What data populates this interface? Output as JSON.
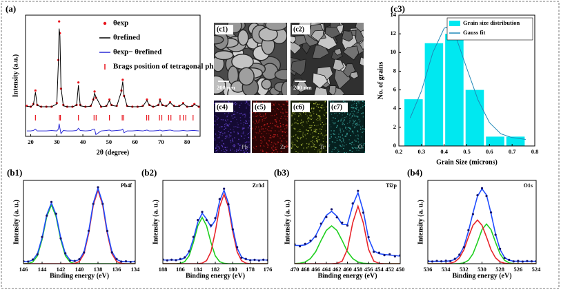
{
  "chart_data": [
    {
      "type": "line",
      "panel": "(a)",
      "x_label": "2θ (degree)",
      "y_label": "Intensity (a.u.)",
      "xlim": [
        18,
        85
      ],
      "xticks": [
        20,
        30,
        40,
        50,
        60,
        70,
        80
      ],
      "ylim": [
        -30,
        105
      ],
      "legend": "upper right",
      "x": [
        18.5,
        20,
        21,
        21.8,
        22.5,
        24,
        26,
        28,
        30,
        30.6,
        30.9,
        31.2,
        31.6,
        32.5,
        34,
        36,
        37.6,
        38.3,
        39,
        41,
        43,
        44,
        44.5,
        45,
        47,
        49,
        50.2,
        51,
        53,
        54.8,
        55.3,
        55.8,
        57,
        59,
        61,
        63,
        64.6,
        65.5,
        67,
        69,
        69.6,
        70.5,
        72,
        73.5,
        75,
        77,
        78.5,
        80,
        82,
        82.8,
        84.5
      ],
      "series": [
        {
          "name": "θexp",
          "color": "#e8141c",
          "style": "dots",
          "values": [
            4,
            3,
            6,
            21,
            5,
            3,
            3,
            3,
            7,
            55,
            98,
            85,
            23,
            5,
            3,
            3,
            5,
            30,
            5,
            3,
            4,
            11,
            20,
            13,
            3,
            4,
            11,
            5,
            4,
            21,
            33,
            15,
            4,
            3,
            3,
            4,
            11,
            5,
            3,
            5,
            11,
            5,
            4,
            8,
            4,
            4,
            7,
            3,
            4,
            6,
            3
          ]
        },
        {
          "name": "θrefined",
          "color": "#000000",
          "style": "line",
          "values": [
            3.5,
            3,
            5,
            19,
            4.5,
            3,
            3,
            3,
            6,
            52,
            90,
            82,
            25,
            4,
            3,
            3,
            4.5,
            27,
            4,
            3,
            3.5,
            10,
            18,
            14,
            3,
            3.5,
            10,
            4.5,
            3.5,
            20,
            31,
            16,
            3.5,
            3,
            3,
            3.5,
            10,
            4.5,
            3,
            4.5,
            10,
            4.5,
            3.5,
            7.5,
            3.5,
            3.5,
            6.5,
            3,
            3.5,
            5.5,
            3
          ]
        },
        {
          "name": "θexp− θrefined",
          "color": "#2b2bd6",
          "style": "line",
          "values": [
            -24,
            -24,
            -23.5,
            -22,
            -24,
            -24,
            -24,
            -23.5,
            -24,
            -22,
            -16,
            -21,
            -27,
            -23.5,
            -24,
            -24,
            -23.5,
            -21,
            -23.5,
            -24,
            -23.5,
            -22,
            -22,
            -28,
            -24,
            -23.5,
            -23,
            -24,
            -23.5,
            -23,
            -22,
            -26,
            -24,
            -24,
            -23.5,
            -24,
            -23,
            -24,
            -24,
            -23.5,
            -23,
            -24,
            -23.5,
            -23,
            -24,
            -24,
            -23.5,
            -24,
            -23.5,
            -23.5,
            -24
          ]
        },
        {
          "name": "Brags position of tetragonal phase",
          "color": "#e8141c",
          "style": "ticks",
          "x": [
            21.8,
            31.0,
            31.4,
            38.3,
            44.3,
            45.1,
            50.2,
            55.1,
            55.7,
            64.5,
            65.3,
            69.4,
            70.3,
            72.9,
            73.8,
            77.3,
            78.6,
            79.5,
            82.3
          ]
        }
      ]
    },
    {
      "type": "histogram",
      "panel": "(c3)",
      "x_label": "Grain Size (microns)",
      "y_label": "No. of grains",
      "xlim": [
        0.2,
        0.8
      ],
      "xticks": [
        0.2,
        0.3,
        0.4,
        0.5,
        0.6,
        0.7,
        0.8
      ],
      "ylim": [
        0,
        14
      ],
      "yticks": [
        0,
        2,
        4,
        6,
        8,
        10,
        12,
        14
      ],
      "legend": "upper right",
      "bins": [
        0.22,
        0.31,
        0.4,
        0.49,
        0.58,
        0.67,
        0.76
      ],
      "series": [
        {
          "name": "Grain size distribution",
          "color": "#00e8f0",
          "style": "bars",
          "values": [
            5,
            11,
            12,
            6,
            1,
            1
          ]
        },
        {
          "name": "Gauss fit",
          "color": "#1f88b8",
          "style": "line",
          "x": [
            0.25,
            0.3,
            0.35,
            0.4,
            0.41,
            0.45,
            0.5,
            0.55,
            0.6,
            0.65,
            0.7,
            0.76
          ],
          "values": [
            3.0,
            5.9,
            10.0,
            12.6,
            12.7,
            11.8,
            8.3,
            4.9,
            2.5,
            1.3,
            0.9,
            0.7
          ]
        }
      ]
    },
    {
      "type": "line",
      "panel": "(b1)",
      "annotation": "Pb4f",
      "x_label": "Binding energy (eV)",
      "y_label": "Intensity (a. u.)",
      "xlim": [
        146,
        134
      ],
      "xticks": [
        146,
        144,
        142,
        140,
        138,
        136,
        134
      ],
      "ylim": [
        0,
        85
      ],
      "x": [
        146,
        145.5,
        145,
        144.5,
        144,
        143.5,
        143,
        142.5,
        142,
        141.5,
        141,
        140.5,
        140,
        139.5,
        139,
        138.5,
        138,
        137.5,
        137,
        136.5,
        136,
        135.5,
        135,
        134.5,
        134
      ],
      "series": [
        {
          "color": "#1fcf1f",
          "style": "line",
          "values": [
            0,
            0.2,
            1.7,
            8.1,
            24.6,
            48,
            60,
            48,
            24.6,
            8.1,
            1.7,
            0.2,
            0,
            0,
            0,
            0,
            0,
            0,
            0,
            0,
            0,
            0,
            0,
            0,
            0
          ]
        },
        {
          "color": "#e8242a",
          "style": "line",
          "values": [
            0,
            0,
            0,
            0,
            0,
            0,
            0,
            0,
            0,
            0,
            0,
            0.3,
            2.2,
            10.1,
            30.8,
            60,
            75,
            60,
            30.8,
            10.1,
            2.2,
            0.3,
            0,
            0,
            0
          ]
        },
        {
          "color": "#1f4cff",
          "style": "line",
          "values": [
            2,
            2.2,
            3.7,
            10.1,
            26.6,
            50,
            62,
            50,
            26.6,
            10.1,
            3.7,
            2.5,
            4.2,
            12.1,
            32.8,
            62,
            77,
            62,
            32.8,
            12.1,
            4.2,
            2.3,
            2,
            2,
            2
          ]
        },
        {
          "color": "#14146e",
          "style": "dots",
          "values": [
            2.5,
            2.1,
            4.2,
            9.5,
            27.3,
            49,
            63,
            51,
            25.8,
            10.6,
            3.3,
            2.8,
            4.6,
            11.4,
            33.5,
            61,
            78,
            61,
            33.4,
            11.5,
            4.8,
            2.1,
            2.4,
            1.8,
            2.2
          ]
        }
      ]
    },
    {
      "type": "line",
      "panel": "(b2)",
      "annotation": "Zr3d",
      "x_label": "Binding energy (eV)",
      "y_label": "Intensity (a. u.)",
      "xlim": [
        188,
        176
      ],
      "xticks": [
        188,
        186,
        184,
        182,
        180,
        178,
        176
      ],
      "ylim": [
        0,
        90
      ],
      "x": [
        188,
        187.5,
        187,
        186.5,
        186,
        185.5,
        185,
        184.5,
        184,
        183.5,
        183,
        182.5,
        182,
        181.5,
        181,
        180.5,
        180,
        179.5,
        179,
        178.5,
        178,
        177.5,
        177,
        176.5,
        176
      ],
      "series": [
        {
          "color": "#1fcf1f",
          "style": "line",
          "values": [
            0,
            0,
            0,
            0,
            0.4,
            2.2,
            8.5,
            23,
            41,
            50,
            41,
            23,
            8.5,
            2.2,
            0.4,
            0,
            0,
            0,
            0,
            0,
            0,
            0,
            0,
            0,
            0
          ]
        },
        {
          "color": "#e8242a",
          "style": "line",
          "values": [
            0,
            0,
            0,
            0,
            0,
            0,
            0,
            0,
            0,
            0.6,
            3.3,
            12.8,
            34.5,
            61.5,
            75,
            61.5,
            34.5,
            12.8,
            3.3,
            0.6,
            0,
            0,
            0,
            0,
            0
          ]
        },
        {
          "color": "#1f4cff",
          "style": "line",
          "values": [
            4,
            4,
            4,
            4,
            4.4,
            6.2,
            12.5,
            27,
            45,
            54.6,
            48.3,
            39.8,
            47,
            67.7,
            79.4,
            65.5,
            38.5,
            16.8,
            7.3,
            4.6,
            4,
            4,
            4,
            4,
            4
          ]
        },
        {
          "color": "#14146e",
          "style": "dots",
          "values": [
            4.5,
            3.6,
            4.3,
            3.8,
            5.1,
            6.8,
            13.4,
            28.9,
            47.2,
            56,
            47.1,
            41.5,
            49.3,
            69.8,
            81,
            64.2,
            37.1,
            17.9,
            6.5,
            5.1,
            3.7,
            4.2,
            3.5,
            4.3,
            3.9
          ]
        }
      ]
    },
    {
      "type": "line",
      "panel": "(b3)",
      "annotation": "Ti2p",
      "x_label": "Binding energy (eV)",
      "y_label": "Intensity (a. u.)",
      "xlim": [
        470,
        450
      ],
      "xticks": [
        470,
        468,
        466,
        464,
        462,
        460,
        458,
        456,
        454,
        452,
        450
      ],
      "ylim": [
        0,
        55
      ],
      "x": [
        470,
        469,
        468,
        467,
        466,
        465,
        464,
        463,
        462,
        461,
        460,
        459,
        458,
        457,
        456,
        455,
        454,
        453,
        452,
        451,
        450
      ],
      "series": [
        {
          "color": "#1fcf1f",
          "style": "line",
          "values": [
            0.1,
            0.3,
            1.1,
            3.4,
            8,
            15.3,
            22,
            25,
            22,
            15.3,
            8,
            3.4,
            1.1,
            0.3,
            0.1,
            0,
            0,
            0,
            0,
            0,
            0
          ]
        },
        {
          "color": "#e8242a",
          "style": "line",
          "values": [
            0,
            0,
            0,
            0,
            0,
            0,
            0,
            0,
            0.2,
            1.7,
            9.5,
            27,
            38,
            27,
            9.5,
            1.7,
            0.2,
            0,
            0,
            0,
            0
          ]
        },
        {
          "color": "#1f4cff",
          "style": "line",
          "values": [
            12.1,
            12,
            12.4,
            14.4,
            18.6,
            25.6,
            31.9,
            34.6,
            31.4,
            25.9,
            26,
            38.6,
            46.9,
            34.8,
            16.7,
            8.5,
            6.6,
            6.1,
            5.7,
            5.4,
            5
          ]
        },
        {
          "color": "#14146e",
          "style": "dots",
          "values": [
            12.8,
            11.5,
            13.1,
            15.2,
            17.9,
            26.4,
            30.8,
            35.9,
            30.6,
            27.1,
            25.2,
            39.8,
            48.1,
            33.7,
            17.5,
            7.9,
            7.2,
            5.6,
            6.2,
            4.9,
            5.5
          ]
        }
      ]
    },
    {
      "type": "line",
      "panel": "(b4)",
      "annotation": "O1s",
      "x_label": "Binding energy (eV)",
      "y_label": "Intensity (a. u.)",
      "xlim": [
        536,
        524
      ],
      "xticks": [
        536,
        534,
        532,
        530,
        528,
        526,
        524
      ],
      "ylim": [
        0,
        105
      ],
      "x": [
        536,
        535.5,
        535,
        534.5,
        534,
        533.5,
        533,
        532.5,
        532,
        531.5,
        531,
        530.5,
        530,
        529.5,
        529,
        528.5,
        528,
        527.5,
        527,
        526.5,
        526,
        525.5,
        525,
        524.5,
        524
      ],
      "series": [
        {
          "color": "#1fcf1f",
          "style": "line",
          "values": [
            0,
            0,
            0,
            0,
            0,
            0,
            0,
            0.2,
            1.1,
            4.3,
            12.5,
            27,
            42.9,
            50,
            42.9,
            27,
            12.5,
            4.3,
            1.1,
            0.2,
            0,
            0,
            0,
            0,
            0
          ]
        },
        {
          "color": "#e8242a",
          "style": "line",
          "values": [
            0,
            0,
            0,
            0,
            0.1,
            0.6,
            2.4,
            7.4,
            17.6,
            33.6,
            48.4,
            55,
            48.4,
            33.6,
            17.6,
            7.4,
            2.4,
            0.6,
            0.1,
            0,
            0,
            0,
            0,
            0,
            0
          ]
        },
        {
          "color": "#1f4cff",
          "style": "line",
          "values": [
            3,
            3,
            3,
            3,
            3.1,
            3.6,
            5.4,
            10.6,
            21.7,
            40.9,
            63.9,
            85,
            94.3,
            86.6,
            63.5,
            37.4,
            17.9,
            7.9,
            4.2,
            3.2,
            3,
            3,
            3,
            3,
            3
          ]
        },
        {
          "color": "#14146e",
          "style": "dots",
          "values": [
            3.4,
            2.7,
            3.5,
            2.9,
            3.8,
            3.2,
            6.1,
            11.4,
            20.8,
            42.2,
            62.5,
            86.3,
            95.1,
            85.4,
            64.6,
            36.5,
            18.8,
            7.2,
            4.9,
            2.8,
            3.5,
            2.6,
            3.3,
            2.9,
            3.1
          ]
        }
      ]
    }
  ],
  "micrographs": [
    {
      "label": "(c1)",
      "scale_bar": "200 nm"
    },
    {
      "label": "(c2)",
      "scale_bar": "200 nm"
    },
    {
      "label": "(c4)",
      "element": "Pb"
    },
    {
      "label": "(c5)",
      "element": "Zr"
    },
    {
      "label": "(c6)",
      "element": "Ti"
    },
    {
      "label": "(c7)",
      "element": "O"
    }
  ]
}
